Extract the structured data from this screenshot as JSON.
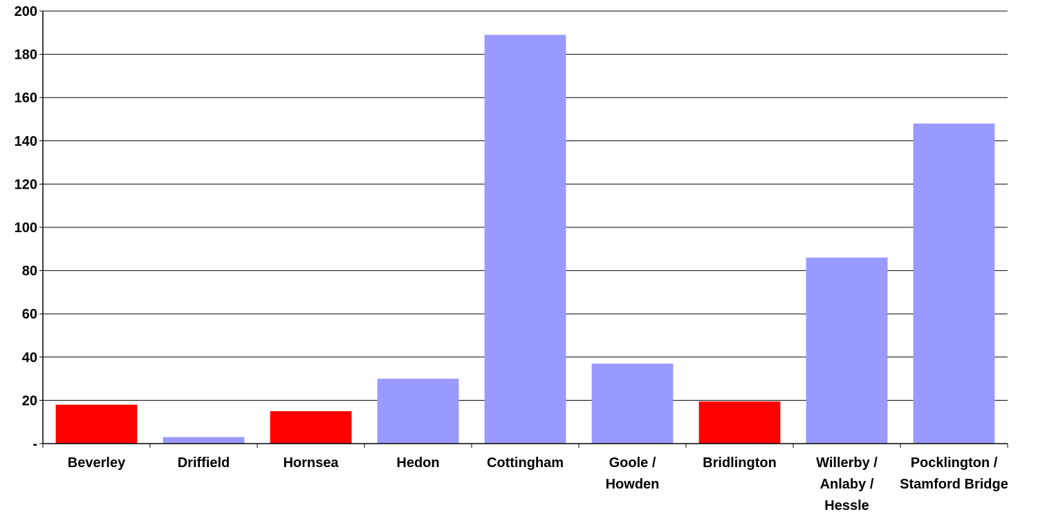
{
  "chart_data": {
    "type": "bar",
    "title": "",
    "xlabel": "",
    "ylabel": "",
    "ylim": [
      0,
      200
    ],
    "yticks": [
      0,
      20,
      40,
      60,
      80,
      100,
      120,
      140,
      160,
      180,
      200
    ],
    "ytick_labels": [
      "-",
      "20",
      "40",
      "60",
      "80",
      "100",
      "120",
      "140",
      "160",
      "180",
      "200"
    ],
    "grid": true,
    "legend": "none",
    "categories": [
      [
        "Beverley"
      ],
      [
        "Driffield"
      ],
      [
        "Hornsea"
      ],
      [
        "Hedon"
      ],
      [
        "Cottingham"
      ],
      [
        "Goole /",
        "Howden"
      ],
      [
        "Bridlington"
      ],
      [
        "Willerby /",
        "Anlaby /",
        "Hessle"
      ],
      [
        "Pocklington /",
        "Stamford Bridge"
      ]
    ],
    "values": [
      18,
      3,
      15,
      30,
      189,
      37,
      19.5,
      86,
      148
    ],
    "colors": [
      "#ff0000",
      "#9999ff",
      "#ff0000",
      "#9999ff",
      "#9999ff",
      "#9999ff",
      "#ff0000",
      "#9999ff",
      "#9999ff"
    ],
    "palette": {
      "highlight": "#ff0000",
      "default": "#9999ff"
    }
  }
}
